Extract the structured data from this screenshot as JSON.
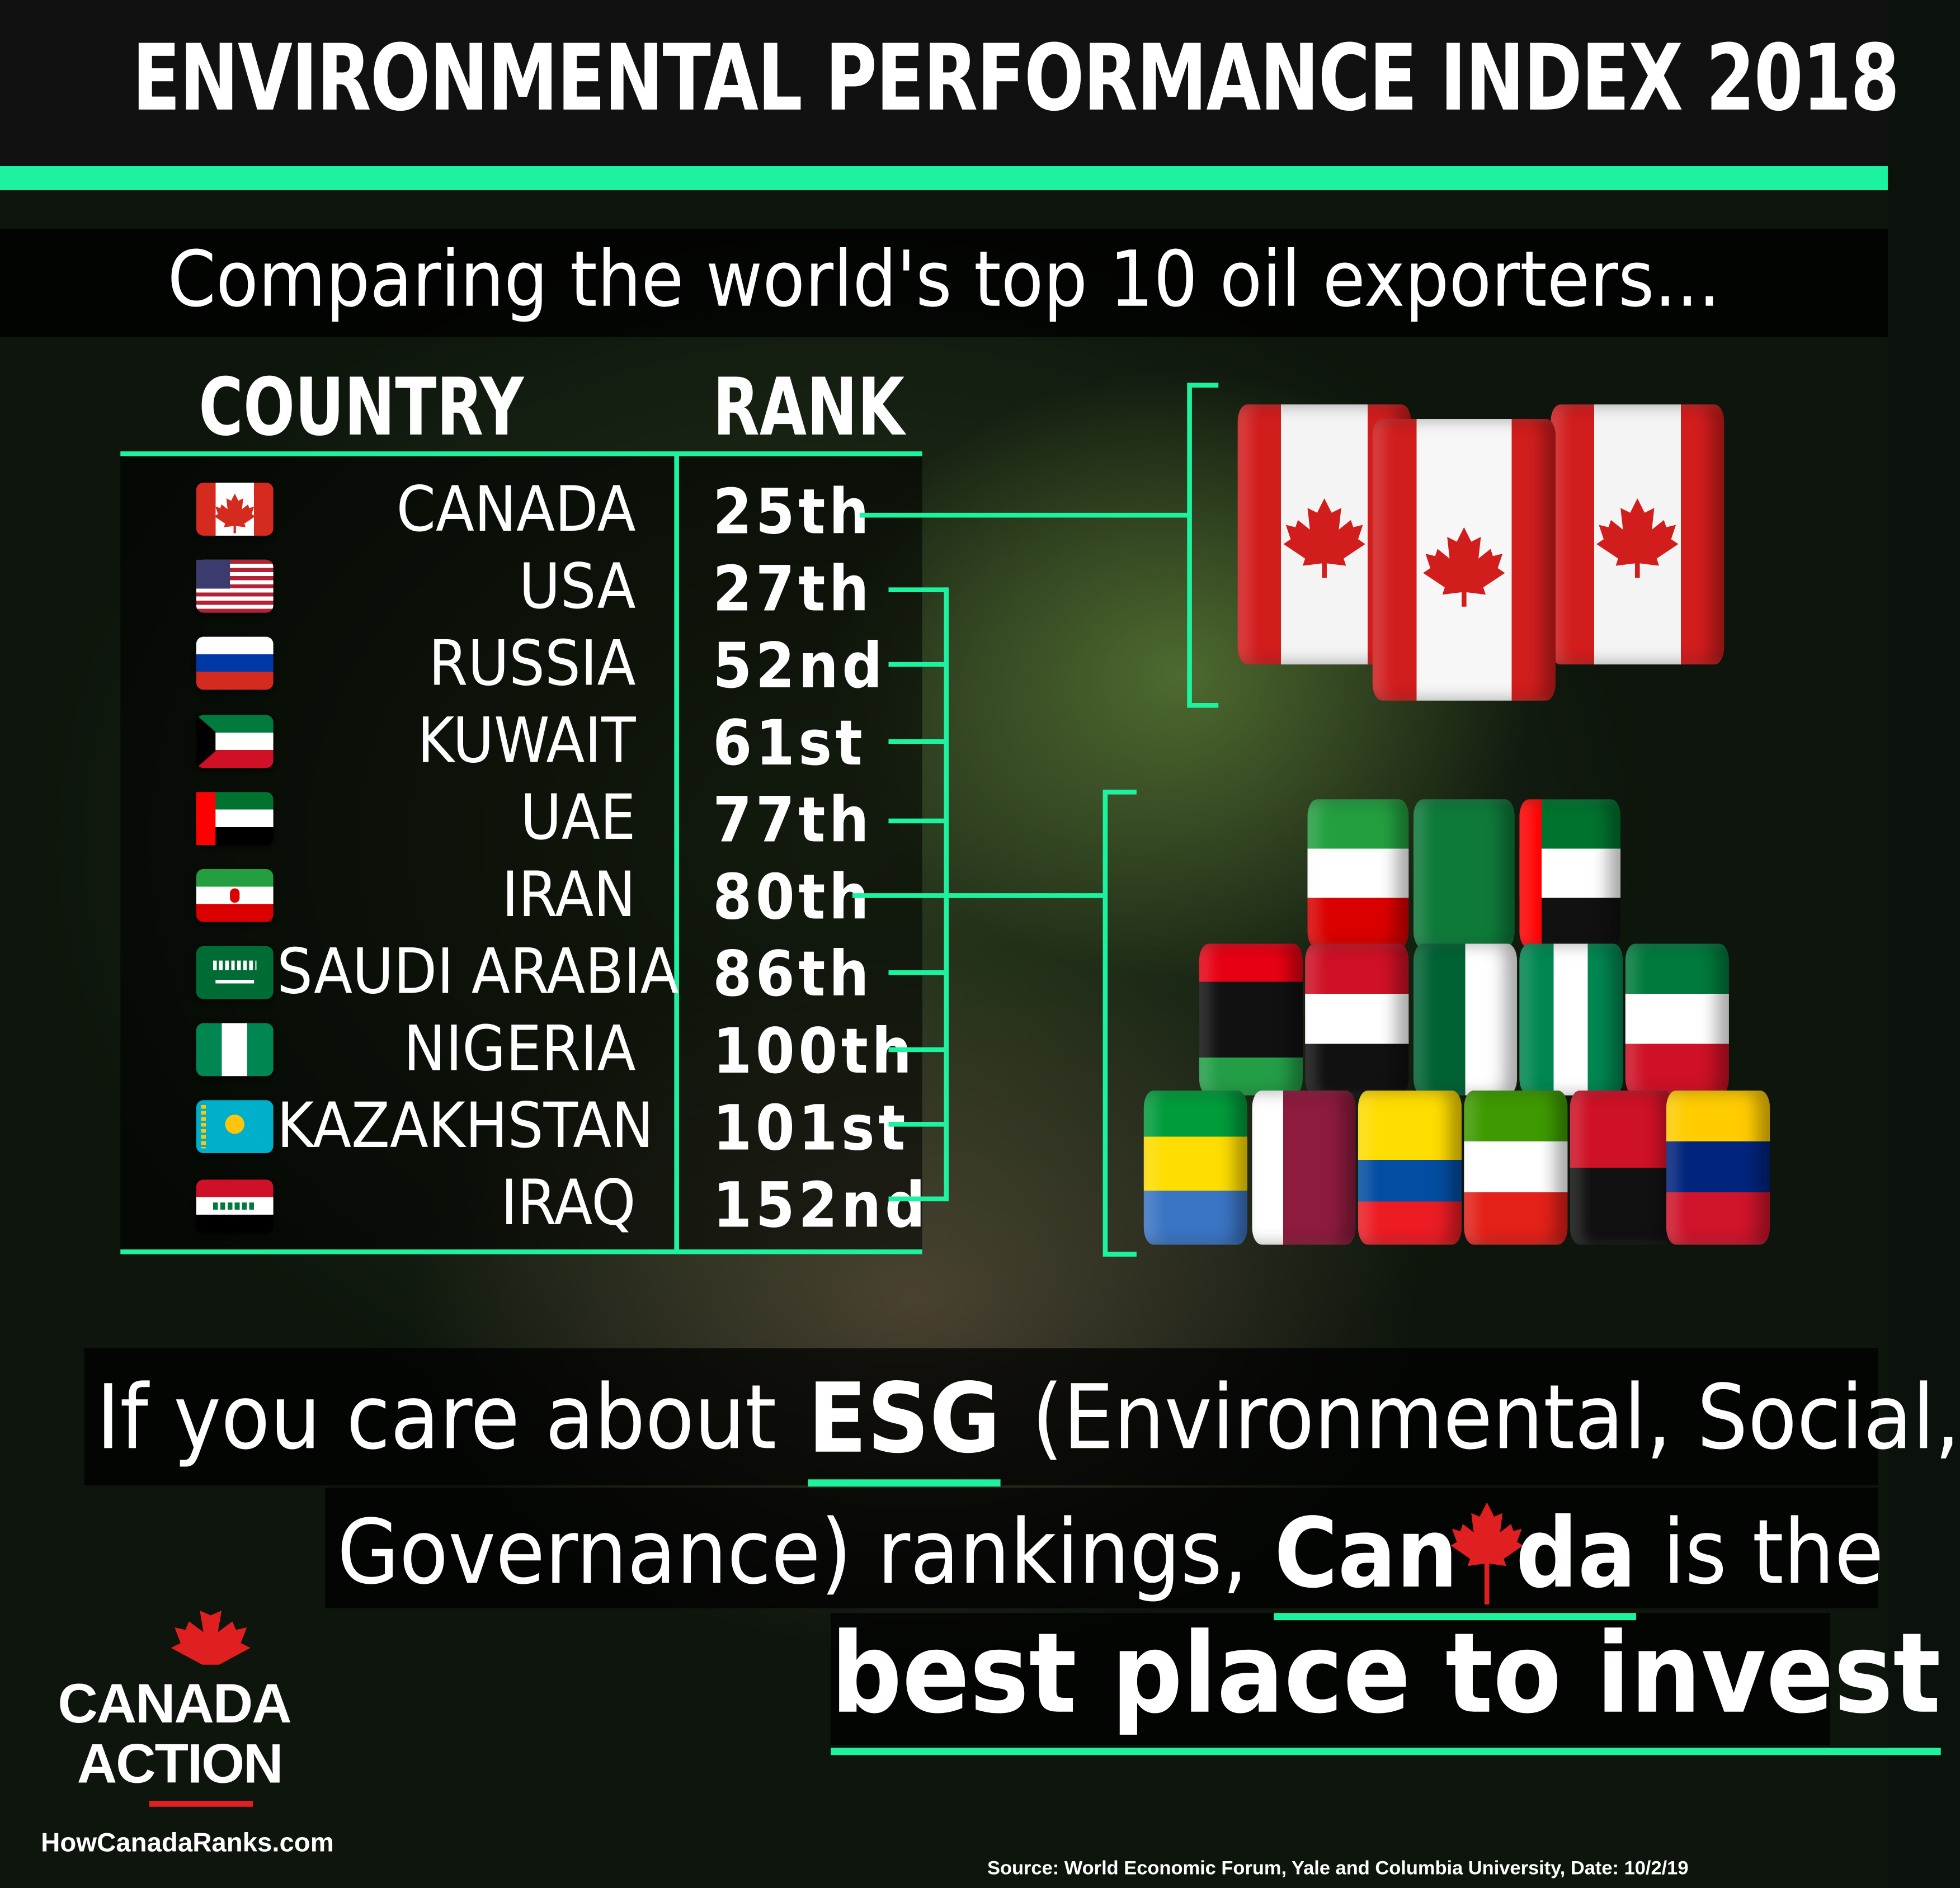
{
  "title": "ENVIRONMENTAL PERFORMANCE INDEX 2018",
  "subtitle": "Comparing the world's top 10 oil exporters...",
  "table": {
    "header_country": "COUNTRY",
    "header_rank": "RANK",
    "rows": [
      {
        "country": "CANADA",
        "rank": "25th",
        "flag": "canada-flag-icon"
      },
      {
        "country": "USA",
        "rank": "27th",
        "flag": "usa-flag-icon"
      },
      {
        "country": "RUSSIA",
        "rank": "52nd",
        "flag": "russia-flag-icon"
      },
      {
        "country": "KUWAIT",
        "rank": "61st",
        "flag": "kuwait-flag-icon"
      },
      {
        "country": "UAE",
        "rank": "77th",
        "flag": "uae-flag-icon"
      },
      {
        "country": "IRAN",
        "rank": "80th",
        "flag": "iran-flag-icon"
      },
      {
        "country": "SAUDI ARABIA",
        "rank": "86th",
        "flag": "saudi-arabia-flag-icon"
      },
      {
        "country": "NIGERIA",
        "rank": "100th",
        "flag": "nigeria-flag-icon"
      },
      {
        "country": "KAZAKHSTAN",
        "rank": "101st",
        "flag": "kazakhstan-flag-icon"
      },
      {
        "country": "IRAQ",
        "rank": "152nd",
        "flag": "iraq-flag-icon"
      }
    ]
  },
  "message": {
    "line1_pre": "If you care about",
    "line1_esg": "ESG",
    "line1_post": "(Environmental, Social,",
    "line2_pre": "Governance) rankings,",
    "line2_canada_a": "Can",
    "line2_canada_b": "da",
    "line2_post": "is the",
    "line3": "best place to invest"
  },
  "brand": {
    "line1": "CANADA",
    "line2": "ACTION",
    "website": "HowCanadaRanks.com"
  },
  "source": "Source: World Economic Forum, Yale and Columbia University, Date: 10/2/19",
  "colors": {
    "accent": "#1df29e",
    "canada_red": "#e02020",
    "background": "#0d150c"
  }
}
